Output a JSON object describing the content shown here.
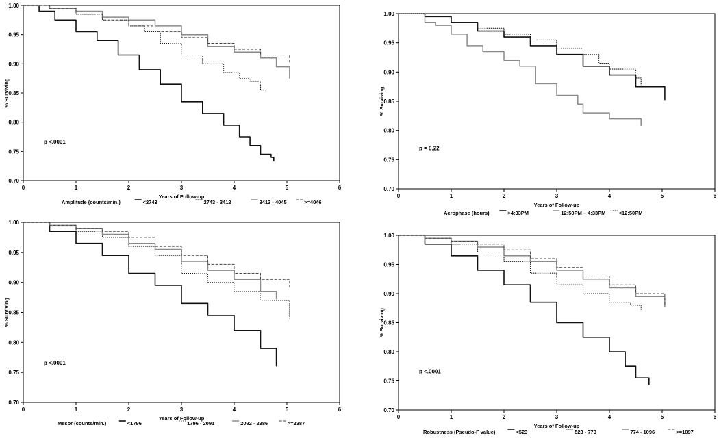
{
  "chart_data": [
    {
      "type": "line",
      "title": "",
      "xlabel": "Years of Follow-up",
      "ylabel": "% Surviving",
      "xlim": [
        0,
        6
      ],
      "ylim": [
        0.7,
        1.0
      ],
      "xticks": [
        "0",
        "1",
        "2",
        "3",
        "4",
        "5",
        "6"
      ],
      "yticks": [
        "0.70",
        "0.75",
        "0.80",
        "0.85",
        "0.90",
        "0.95",
        "1.00"
      ],
      "grid": false,
      "annotation": "p <.0001",
      "legend_title": "Amplitude (counts/min.)",
      "legend_position": "bottom",
      "series": [
        {
          "name": "<2743",
          "style": "solid-black",
          "x": [
            0,
            0.3,
            0.6,
            1.0,
            1.4,
            1.8,
            2.2,
            2.6,
            3.0,
            3.4,
            3.8,
            4.1,
            4.3,
            4.5,
            4.7,
            4.75
          ],
          "y": [
            1.0,
            0.99,
            0.975,
            0.955,
            0.94,
            0.915,
            0.89,
            0.865,
            0.835,
            0.815,
            0.795,
            0.775,
            0.76,
            0.745,
            0.74,
            0.733
          ]
        },
        {
          "name": "2743 - 3412",
          "style": "dotted",
          "x": [
            0,
            0.5,
            1.0,
            1.5,
            2.0,
            2.3,
            2.6,
            3.0,
            3.4,
            3.8,
            4.1,
            4.3,
            4.5,
            4.6
          ],
          "y": [
            1.0,
            0.995,
            0.985,
            0.975,
            0.965,
            0.955,
            0.935,
            0.915,
            0.9,
            0.885,
            0.875,
            0.87,
            0.855,
            0.85
          ]
        },
        {
          "name": "3413 - 4045",
          "style": "solid-gray",
          "x": [
            0,
            0.5,
            1.0,
            1.5,
            2.0,
            2.5,
            3.0,
            3.5,
            4.0,
            4.5,
            4.8,
            5.05
          ],
          "y": [
            1.0,
            0.995,
            0.99,
            0.98,
            0.975,
            0.965,
            0.95,
            0.93,
            0.92,
            0.91,
            0.895,
            0.875
          ]
        },
        {
          "name": ">=4046",
          "style": "dashed",
          "x": [
            0,
            0.5,
            1.0,
            1.5,
            2.0,
            2.5,
            3.0,
            3.5,
            4.0,
            4.5,
            5.05
          ],
          "y": [
            1.0,
            0.995,
            0.985,
            0.975,
            0.965,
            0.955,
            0.945,
            0.935,
            0.925,
            0.915,
            0.902
          ]
        }
      ]
    },
    {
      "type": "line",
      "title": "",
      "xlabel": "Years of Follow-up",
      "ylabel": "% Surviving",
      "xlim": [
        0,
        6
      ],
      "ylim": [
        0.7,
        1.0
      ],
      "xticks": [
        "0",
        "1",
        "2",
        "3",
        "4",
        "5",
        "6"
      ],
      "yticks": [
        "0.70",
        "0.75",
        "0.80",
        "0.85",
        "0.90",
        "0.95",
        "1.00"
      ],
      "grid": false,
      "annotation": "p = 0.22",
      "legend_title": "Acrophase (hours)",
      "legend_position": "bottom",
      "series": [
        {
          "name": ">4:33PM",
          "style": "solid-black",
          "x": [
            0,
            0.5,
            1.0,
            1.5,
            2.0,
            2.5,
            3.0,
            3.5,
            4.0,
            4.5,
            5.05
          ],
          "y": [
            1.0,
            0.995,
            0.985,
            0.97,
            0.96,
            0.945,
            0.93,
            0.91,
            0.895,
            0.875,
            0.852
          ]
        },
        {
          "name": "12:50PM – 4:33PM",
          "style": "solid-gray",
          "x": [
            0,
            0.5,
            0.7,
            1.0,
            1.3,
            1.6,
            2.0,
            2.3,
            2.6,
            3.0,
            3.4,
            3.5,
            4.0,
            4.6
          ],
          "y": [
            1.0,
            0.985,
            0.98,
            0.965,
            0.945,
            0.935,
            0.92,
            0.91,
            0.88,
            0.86,
            0.845,
            0.83,
            0.82,
            0.808
          ]
        },
        {
          "name": "<12:50PM",
          "style": "dotted",
          "x": [
            0,
            0.5,
            1.0,
            1.5,
            2.0,
            2.5,
            3.0,
            3.5,
            3.8,
            4.0,
            4.5,
            4.6
          ],
          "y": [
            1.0,
            0.995,
            0.985,
            0.975,
            0.965,
            0.955,
            0.94,
            0.93,
            0.915,
            0.905,
            0.89,
            0.875
          ]
        }
      ]
    },
    {
      "type": "line",
      "title": "",
      "xlabel": "Years of Follow-up",
      "ylabel": "% Surviving",
      "xlim": [
        0,
        6
      ],
      "ylim": [
        0.7,
        1.0
      ],
      "xticks": [
        "0",
        "1",
        "2",
        "3",
        "4",
        "5",
        "6"
      ],
      "yticks": [
        "0.70",
        "0.75",
        "0.80",
        "0.85",
        "0.90",
        "0.95",
        "1.00"
      ],
      "grid": false,
      "annotation": "p <.0001",
      "legend_title": "Mesor (counts/min.)",
      "legend_position": "bottom",
      "series": [
        {
          "name": "<1796",
          "style": "solid-black",
          "x": [
            0,
            0.5,
            1.0,
            1.5,
            2.0,
            2.5,
            3.0,
            3.5,
            4.0,
            4.5,
            4.8
          ],
          "y": [
            1.0,
            0.985,
            0.965,
            0.945,
            0.915,
            0.895,
            0.865,
            0.845,
            0.82,
            0.79,
            0.76
          ]
        },
        {
          "name": "1796 - 2091",
          "style": "dotted",
          "x": [
            0,
            0.5,
            1.0,
            1.5,
            2.0,
            2.5,
            3.0,
            3.5,
            4.0,
            4.5,
            5.05
          ],
          "y": [
            1.0,
            0.995,
            0.985,
            0.975,
            0.96,
            0.945,
            0.915,
            0.9,
            0.885,
            0.87,
            0.84
          ]
        },
        {
          "name": "2092 - 2386",
          "style": "solid-gray",
          "x": [
            0,
            0.5,
            1.0,
            1.5,
            2.0,
            2.5,
            3.0,
            3.5,
            4.0,
            4.5,
            4.8
          ],
          "y": [
            1.0,
            0.995,
            0.99,
            0.98,
            0.965,
            0.955,
            0.935,
            0.92,
            0.905,
            0.885,
            0.872
          ]
        },
        {
          "name": ">=2387",
          "style": "dashed",
          "x": [
            0,
            0.5,
            1.0,
            1.5,
            2.0,
            2.5,
            3.0,
            3.5,
            4.0,
            4.5,
            5.05
          ],
          "y": [
            1.0,
            0.995,
            0.99,
            0.985,
            0.975,
            0.96,
            0.945,
            0.93,
            0.915,
            0.905,
            0.892
          ]
        }
      ]
    },
    {
      "type": "line",
      "title": "",
      "xlabel": "Years of Follow-up",
      "ylabel": "% Surviving",
      "xlim": [
        0,
        6
      ],
      "ylim": [
        0.7,
        1.0
      ],
      "xticks": [
        "0",
        "1",
        "2",
        "3",
        "4",
        "5",
        "6"
      ],
      "yticks": [
        "0.70",
        "0.75",
        "0.80",
        "0.85",
        "0.90",
        "0.95",
        "1.00"
      ],
      "grid": false,
      "annotation": "p <.0001",
      "legend_title": "Robustness (Pseudo-F value)",
      "legend_position": "bottom",
      "series": [
        {
          "name": "<523",
          "style": "solid-black",
          "x": [
            0,
            0.5,
            1.0,
            1.5,
            2.0,
            2.5,
            3.0,
            3.5,
            4.0,
            4.3,
            4.5,
            4.75
          ],
          "y": [
            1.0,
            0.985,
            0.965,
            0.94,
            0.915,
            0.885,
            0.85,
            0.825,
            0.8,
            0.775,
            0.755,
            0.743
          ]
        },
        {
          "name": "523 - 773",
          "style": "dotted",
          "x": [
            0,
            0.5,
            1.0,
            1.5,
            2.0,
            2.5,
            3.0,
            3.5,
            4.0,
            4.4,
            4.6
          ],
          "y": [
            1.0,
            0.995,
            0.985,
            0.97,
            0.955,
            0.935,
            0.915,
            0.9,
            0.885,
            0.88,
            0.872
          ]
        },
        {
          "name": "774 - 1096",
          "style": "solid-gray",
          "x": [
            0,
            0.5,
            1.0,
            1.5,
            2.0,
            2.5,
            3.0,
            3.5,
            4.0,
            4.5,
            5.05
          ],
          "y": [
            1.0,
            0.995,
            0.99,
            0.98,
            0.965,
            0.955,
            0.94,
            0.925,
            0.91,
            0.895,
            0.877
          ]
        },
        {
          "name": ">=1097",
          "style": "dashed",
          "x": [
            0,
            0.5,
            1.0,
            1.5,
            2.0,
            2.5,
            3.0,
            3.5,
            4.0,
            4.5,
            5.05
          ],
          "y": [
            1.0,
            0.995,
            0.99,
            0.985,
            0.975,
            0.96,
            0.945,
            0.93,
            0.915,
            0.9,
            0.88
          ]
        }
      ]
    }
  ]
}
